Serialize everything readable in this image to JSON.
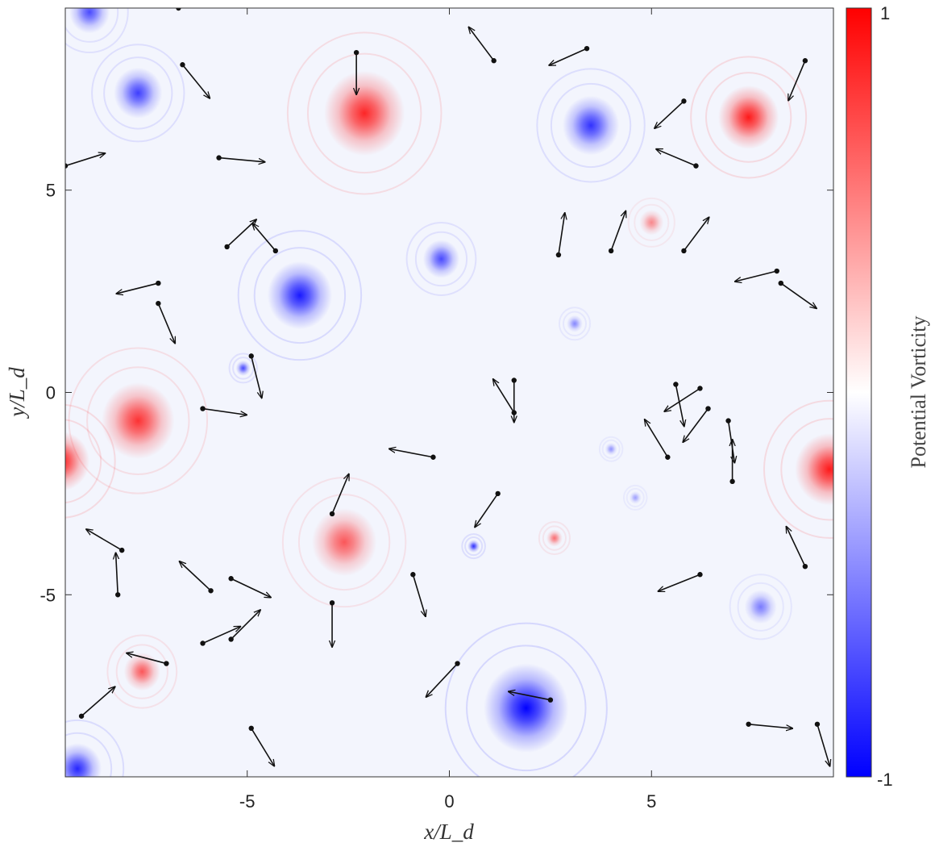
{
  "chart_data": {
    "type": "heatmap",
    "title": "",
    "xlabel": "x/L_d",
    "ylabel": "y/L_d",
    "xlim": [
      -9.5,
      9.5
    ],
    "ylim": [
      -9.5,
      9.5
    ],
    "xticks": [
      {
        "value": -5,
        "label": "-5"
      },
      {
        "value": 0,
        "label": "0"
      },
      {
        "value": 5,
        "label": "5"
      }
    ],
    "yticks": [
      {
        "value": 5,
        "label": "5"
      },
      {
        "value": 0,
        "label": "0"
      },
      {
        "value": -5,
        "label": "-5"
      }
    ],
    "grid": false,
    "colorbar": {
      "label": "Potential Vorticity",
      "min": -1,
      "max": 1,
      "min_label": "-1",
      "max_label": "1",
      "colors": {
        "low": "#0000ff",
        "mid": "#ffffff",
        "high": "#ff0000"
      }
    },
    "vortices": [
      {
        "x": -2.1,
        "y": 6.9,
        "strength": 0.85,
        "radius": 1.0
      },
      {
        "x": 7.4,
        "y": 6.8,
        "strength": 0.9,
        "radius": 0.75
      },
      {
        "x": -7.7,
        "y": -0.7,
        "strength": 0.8,
        "radius": 0.9
      },
      {
        "x": -9.6,
        "y": -1.7,
        "strength": 0.9,
        "radius": 0.7
      },
      {
        "x": 9.4,
        "y": -1.9,
        "strength": 0.9,
        "radius": 0.85
      },
      {
        "x": -2.6,
        "y": -3.7,
        "strength": 0.65,
        "radius": 0.8
      },
      {
        "x": -7.6,
        "y": -6.9,
        "strength": 0.65,
        "radius": 0.45
      },
      {
        "x": 5.0,
        "y": 4.2,
        "strength": 0.45,
        "radius": 0.3
      },
      {
        "x": 2.6,
        "y": -3.6,
        "strength": 0.55,
        "radius": 0.2
      },
      {
        "x": -7.7,
        "y": 7.4,
        "strength": -0.75,
        "radius": 0.6
      },
      {
        "x": 3.5,
        "y": 6.6,
        "strength": -0.8,
        "radius": 0.7
      },
      {
        "x": -3.7,
        "y": 2.4,
        "strength": -0.9,
        "radius": 0.8
      },
      {
        "x": -0.2,
        "y": 3.3,
        "strength": -0.7,
        "radius": 0.45
      },
      {
        "x": 1.9,
        "y": -7.8,
        "strength": -1.0,
        "radius": 1.05
      },
      {
        "x": -9.2,
        "y": -9.3,
        "strength": -0.85,
        "radius": 0.6
      },
      {
        "x": -8.9,
        "y": 9.4,
        "strength": -0.7,
        "radius": 0.5
      },
      {
        "x": 7.7,
        "y": -5.3,
        "strength": -0.5,
        "radius": 0.4
      },
      {
        "x": -5.1,
        "y": 0.6,
        "strength": -0.7,
        "radius": 0.18
      },
      {
        "x": 0.6,
        "y": -3.8,
        "strength": -0.8,
        "radius": 0.15
      },
      {
        "x": 3.1,
        "y": 1.7,
        "strength": -0.45,
        "radius": 0.2
      },
      {
        "x": 4.0,
        "y": -1.4,
        "strength": -0.4,
        "radius": 0.15
      },
      {
        "x": 4.6,
        "y": -2.6,
        "strength": -0.35,
        "radius": 0.15
      }
    ],
    "particles": [
      {
        "x": -2.3,
        "y": 8.4,
        "u": 0.0,
        "v": -1.0
      },
      {
        "x": -6.6,
        "y": 8.1,
        "u": 0.65,
        "v": -0.8
      },
      {
        "x": -9.5,
        "y": 5.6,
        "u": 0.95,
        "v": 0.3
      },
      {
        "x": -5.7,
        "y": 5.8,
        "u": 1.1,
        "v": -0.1
      },
      {
        "x": 1.1,
        "y": 8.2,
        "u": -0.6,
        "v": 0.8
      },
      {
        "x": 3.4,
        "y": 8.5,
        "u": -0.9,
        "v": -0.4
      },
      {
        "x": 5.8,
        "y": 7.2,
        "u": -0.7,
        "v": -0.65
      },
      {
        "x": 6.1,
        "y": 5.6,
        "u": -0.95,
        "v": 0.4
      },
      {
        "x": 8.8,
        "y": 8.2,
        "u": -0.4,
        "v": -0.95
      },
      {
        "x": -6.7,
        "y": 9.5,
        "u": -0.8,
        "v": 0.25
      },
      {
        "x": -5.5,
        "y": 3.6,
        "u": 0.7,
        "v": 0.65
      },
      {
        "x": -4.3,
        "y": 3.5,
        "u": -0.55,
        "v": 0.65
      },
      {
        "x": -7.2,
        "y": 2.7,
        "u": -1.0,
        "v": -0.25
      },
      {
        "x": -7.2,
        "y": 2.2,
        "u": 0.4,
        "v": -0.95
      },
      {
        "x": -4.9,
        "y": 0.9,
        "u": 0.25,
        "v": -1.0
      },
      {
        "x": -6.1,
        "y": -0.4,
        "u": 1.05,
        "v": -0.15
      },
      {
        "x": 2.7,
        "y": 3.4,
        "u": 0.15,
        "v": 1.0
      },
      {
        "x": 4.0,
        "y": 3.5,
        "u": 0.35,
        "v": 0.95
      },
      {
        "x": 5.8,
        "y": 3.5,
        "u": 0.6,
        "v": 0.8
      },
      {
        "x": 8.1,
        "y": 3.0,
        "u": -1.0,
        "v": -0.25
      },
      {
        "x": 8.2,
        "y": 2.7,
        "u": 0.85,
        "v": -0.6
      },
      {
        "x": 1.6,
        "y": 0.3,
        "u": 0.0,
        "v": -1.0
      },
      {
        "x": 1.6,
        "y": -0.5,
        "u": -0.5,
        "v": 0.8
      },
      {
        "x": 5.6,
        "y": 0.2,
        "u": 0.2,
        "v": -1.0
      },
      {
        "x": 6.2,
        "y": 0.1,
        "u": -0.85,
        "v": -0.55
      },
      {
        "x": 6.4,
        "y": -0.4,
        "u": -0.6,
        "v": -0.8
      },
      {
        "x": 6.9,
        "y": -0.7,
        "u": 0.15,
        "v": -1.0
      },
      {
        "x": 7.0,
        "y": -2.2,
        "u": 0.0,
        "v": 1.0
      },
      {
        "x": 5.4,
        "y": -1.6,
        "u": -0.55,
        "v": 0.9
      },
      {
        "x": -0.4,
        "y": -1.6,
        "u": -1.05,
        "v": 0.2
      },
      {
        "x": -2.9,
        "y": -3.0,
        "u": 0.4,
        "v": 0.95
      },
      {
        "x": 1.2,
        "y": -2.5,
        "u": -0.55,
        "v": -0.8
      },
      {
        "x": -8.1,
        "y": -3.9,
        "u": -0.85,
        "v": 0.5
      },
      {
        "x": -8.2,
        "y": -5.0,
        "u": -0.05,
        "v": 1.0
      },
      {
        "x": -5.9,
        "y": -4.9,
        "u": -0.75,
        "v": 0.7
      },
      {
        "x": -5.4,
        "y": -4.6,
        "u": 0.95,
        "v": -0.45
      },
      {
        "x": -0.9,
        "y": -4.5,
        "u": 0.3,
        "v": -1.0
      },
      {
        "x": -2.9,
        "y": -5.2,
        "u": 0.0,
        "v": -1.05
      },
      {
        "x": 6.2,
        "y": -4.5,
        "u": -1.0,
        "v": -0.4
      },
      {
        "x": 8.8,
        "y": -4.3,
        "u": -0.45,
        "v": 0.95
      },
      {
        "x": -6.1,
        "y": -6.2,
        "u": 0.9,
        "v": 0.4
      },
      {
        "x": -5.4,
        "y": -6.1,
        "u": 0.7,
        "v": 0.7
      },
      {
        "x": -7.0,
        "y": -6.7,
        "u": -0.95,
        "v": 0.25
      },
      {
        "x": 0.2,
        "y": -6.7,
        "u": -0.75,
        "v": -0.8
      },
      {
        "x": 2.5,
        "y": -7.6,
        "u": -1.0,
        "v": 0.2
      },
      {
        "x": -9.1,
        "y": -8.0,
        "u": 0.8,
        "v": 0.7
      },
      {
        "x": -4.9,
        "y": -8.3,
        "u": 0.55,
        "v": -0.9
      },
      {
        "x": 7.4,
        "y": -8.2,
        "u": 1.05,
        "v": -0.1
      },
      {
        "x": 9.1,
        "y": -8.2,
        "u": 0.3,
        "v": -1.0
      }
    ]
  }
}
